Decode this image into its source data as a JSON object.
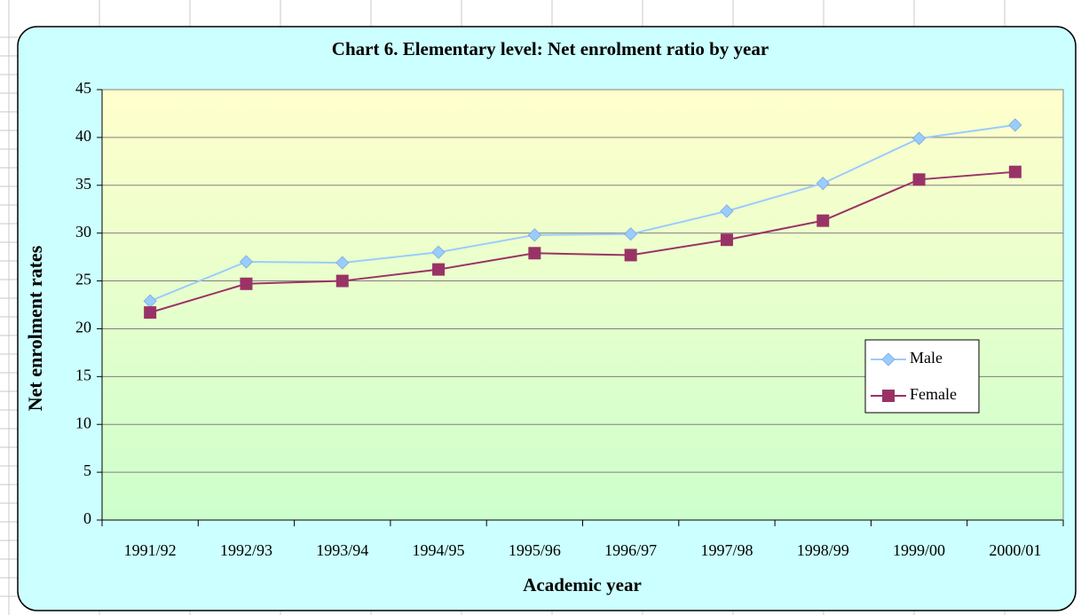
{
  "chart_data": {
    "type": "line",
    "title": "Chart 6. Elementary level: Net enrolment ratio by year",
    "x_label": "Academic year",
    "y_label": "Net enrolment rates",
    "categories": [
      "1991/92",
      "1992/93",
      "1993/94",
      "1994/95",
      "1995/96",
      "1996/97",
      "1997/98",
      "1998/99",
      "1999/00",
      "2000/01"
    ],
    "series": [
      {
        "name": "Male",
        "color": "#99ccff",
        "marker": "diamond",
        "values": [
          22.9,
          27.0,
          26.9,
          28.0,
          29.8,
          29.9,
          32.3,
          35.2,
          39.9,
          41.3
        ]
      },
      {
        "name": "Female",
        "color": "#993366",
        "marker": "square",
        "values": [
          21.7,
          24.7,
          25.0,
          26.2,
          27.9,
          27.7,
          29.3,
          31.3,
          35.6,
          36.4
        ]
      }
    ],
    "ylim": [
      0,
      45
    ],
    "yticks": [
      0,
      5,
      10,
      15,
      20,
      25,
      30,
      35,
      40,
      45
    ],
    "grid": true,
    "legend": "right"
  }
}
